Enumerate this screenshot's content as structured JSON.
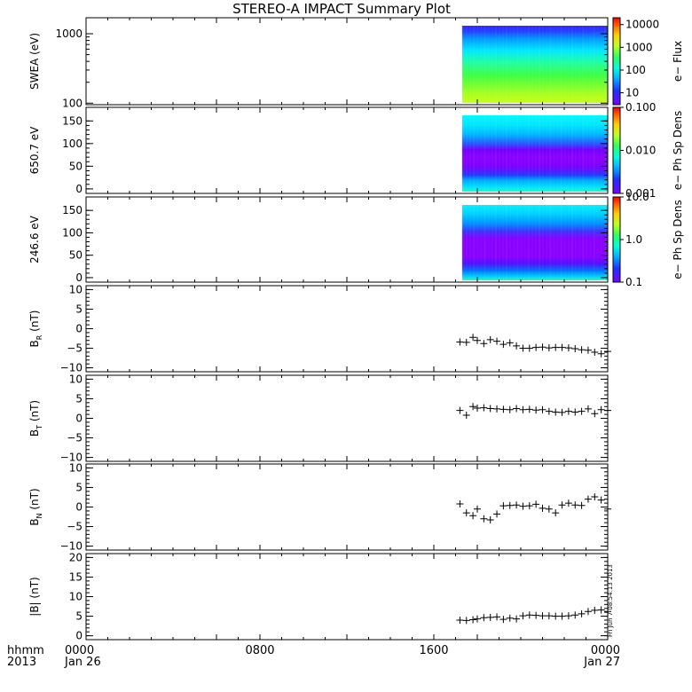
{
  "title": "STEREO-A IMPACT Summary Plot",
  "time_axis": {
    "row1_label": "hhmm",
    "row2_label": "2013",
    "ticks": [
      {
        "hour": 0,
        "time": "0000",
        "date": "Jan 26"
      },
      {
        "hour": 8,
        "time": "0800",
        "date": ""
      },
      {
        "hour": 16,
        "time": "1600",
        "date": ""
      },
      {
        "hour": 24,
        "time": "0000",
        "date": "Jan 27"
      }
    ]
  },
  "timestamp": "Fri Jun 7 08:54:13 2013",
  "colors": {
    "frame": "#000000",
    "background": "#ffffff"
  },
  "chart_data": [
    {
      "type": "heatmap",
      "id": "swea",
      "ylabel": "SWEA (eV)",
      "yscale": "log",
      "ylim": [
        95,
        1700
      ],
      "yticks": [
        {
          "v": 100,
          "label": "100"
        },
        {
          "v": 1000,
          "label": "1000"
        }
      ],
      "data_start_hour": 17.3,
      "data_end_hour": 24,
      "colorbar": {
        "label": "e− Flux",
        "scale": "log",
        "ticks": [
          {
            "v": 10,
            "label": "10"
          },
          {
            "v": 100,
            "label": "100"
          },
          {
            "v": 1000,
            "label": "1000"
          },
          {
            "v": 10000,
            "label": "10000"
          }
        ],
        "range": [
          3,
          20000
        ]
      }
    },
    {
      "type": "heatmap",
      "id": "pad650",
      "ylabel": "650.7 eV",
      "yscale": "linear",
      "ylim": [
        -10,
        180
      ],
      "yticks": [
        {
          "v": 0,
          "label": "0"
        },
        {
          "v": 50,
          "label": "50"
        },
        {
          "v": 100,
          "label": "100"
        },
        {
          "v": 150,
          "label": "150"
        }
      ],
      "data_start_hour": 17.3,
      "data_end_hour": 24,
      "colorbar": {
        "label": "e− Ph Sp Dens",
        "scale": "log",
        "ticks": [
          {
            "v": 0.001,
            "label": "0.001"
          },
          {
            "v": 0.01,
            "label": "0.010"
          },
          {
            "v": 0.1,
            "label": "0.100"
          }
        ],
        "range": [
          0.001,
          0.1
        ]
      }
    },
    {
      "type": "heatmap",
      "id": "pad246",
      "ylabel": "246.6 eV",
      "yscale": "linear",
      "ylim": [
        -10,
        180
      ],
      "yticks": [
        {
          "v": 0,
          "label": "0"
        },
        {
          "v": 50,
          "label": "50"
        },
        {
          "v": 100,
          "label": "100"
        },
        {
          "v": 150,
          "label": "150"
        }
      ],
      "data_start_hour": 17.3,
      "data_end_hour": 24,
      "colorbar": {
        "label": "e− Ph Sp Dens",
        "scale": "log",
        "ticks": [
          {
            "v": 0.1,
            "label": "0.1"
          },
          {
            "v": 1,
            "label": "1.0"
          },
          {
            "v": 10,
            "label": "10.0"
          }
        ],
        "range": [
          0.1,
          10
        ]
      }
    },
    {
      "type": "scatter",
      "id": "br",
      "ylabel": "B",
      "ylabel_sub": "R",
      "ylabel_unit": "(nT)",
      "ylim": [
        -11,
        11
      ],
      "yticks": [
        {
          "v": -10,
          "label": "−10"
        },
        {
          "v": -5,
          "label": "−5"
        },
        {
          "v": 0,
          "label": "0"
        },
        {
          "v": 5,
          "label": "5"
        },
        {
          "v": 10,
          "label": "10"
        }
      ],
      "x": [
        17.2,
        17.5,
        17.8,
        18.0,
        18.3,
        18.6,
        18.9,
        19.2,
        19.5,
        19.8,
        20.1,
        20.4,
        20.7,
        21.0,
        21.3,
        21.6,
        21.9,
        22.2,
        22.5,
        22.8,
        23.1,
        23.4,
        23.7,
        24.0
      ],
      "y": [
        -3.4,
        -3.5,
        -2.2,
        -3.0,
        -3.8,
        -2.8,
        -3.2,
        -4.0,
        -3.6,
        -4.4,
        -5.0,
        -5.0,
        -4.8,
        -4.7,
        -4.9,
        -4.8,
        -4.8,
        -4.9,
        -5.1,
        -5.4,
        -5.5,
        -6.0,
        -6.4,
        -5.8
      ]
    },
    {
      "type": "scatter",
      "id": "bt",
      "ylabel": "B",
      "ylabel_sub": "T",
      "ylabel_unit": "(nT)",
      "ylim": [
        -11,
        11
      ],
      "yticks": [
        {
          "v": -10,
          "label": "−10"
        },
        {
          "v": -5,
          "label": "−5"
        },
        {
          "v": 0,
          "label": "0"
        },
        {
          "v": 5,
          "label": "5"
        },
        {
          "v": 10,
          "label": "10"
        }
      ],
      "x": [
        17.2,
        17.5,
        17.8,
        18.0,
        18.3,
        18.6,
        18.9,
        19.2,
        19.5,
        19.8,
        20.1,
        20.4,
        20.7,
        21.0,
        21.3,
        21.6,
        21.9,
        22.2,
        22.5,
        22.8,
        23.1,
        23.4,
        23.7,
        24.0
      ],
      "y": [
        2.0,
        0.8,
        3.0,
        2.6,
        2.7,
        2.5,
        2.4,
        2.3,
        2.2,
        2.5,
        2.2,
        2.3,
        2.1,
        2.2,
        1.8,
        1.6,
        1.5,
        1.8,
        1.6,
        1.8,
        2.4,
        1.2,
        2.2,
        2.0
      ]
    },
    {
      "type": "scatter",
      "id": "bn",
      "ylabel": "B",
      "ylabel_sub": "N",
      "ylabel_unit": "(nT)",
      "ylim": [
        -11,
        11
      ],
      "yticks": [
        {
          "v": -10,
          "label": "−10"
        },
        {
          "v": -5,
          "label": "−5"
        },
        {
          "v": 0,
          "label": "0"
        },
        {
          "v": 5,
          "label": "5"
        },
        {
          "v": 10,
          "label": "10"
        }
      ],
      "x": [
        17.2,
        17.5,
        17.8,
        18.0,
        18.3,
        18.6,
        18.9,
        19.2,
        19.5,
        19.8,
        20.1,
        20.4,
        20.7,
        21.0,
        21.3,
        21.6,
        21.9,
        22.2,
        22.5,
        22.8,
        23.1,
        23.4,
        23.7,
        24.0
      ],
      "y": [
        0.8,
        -1.5,
        -2.2,
        -0.5,
        -3.0,
        -3.3,
        -1.8,
        0.3,
        0.4,
        0.5,
        0.2,
        0.3,
        0.7,
        -0.3,
        -0.5,
        -1.5,
        0.5,
        1.0,
        0.5,
        0.4,
        2.0,
        2.6,
        1.8,
        -0.5
      ]
    },
    {
      "type": "scatter",
      "id": "bmag",
      "ylabel": "|B| (nT)",
      "ylim": [
        -1,
        21
      ],
      "yticks": [
        {
          "v": 0,
          "label": "0"
        },
        {
          "v": 5,
          "label": "5"
        },
        {
          "v": 10,
          "label": "10"
        },
        {
          "v": 15,
          "label": "15"
        },
        {
          "v": 20,
          "label": "20"
        }
      ],
      "x": [
        17.2,
        17.5,
        17.8,
        18.0,
        18.3,
        18.6,
        18.9,
        19.2,
        19.5,
        19.8,
        20.1,
        20.4,
        20.7,
        21.0,
        21.3,
        21.6,
        21.9,
        22.2,
        22.5,
        22.8,
        23.1,
        23.4,
        23.7,
        24.0
      ],
      "y": [
        4.0,
        3.9,
        4.1,
        4.3,
        4.6,
        4.7,
        4.8,
        4.2,
        4.5,
        4.3,
        5.1,
        5.3,
        5.2,
        5.1,
        5.1,
        5.0,
        5.0,
        5.1,
        5.3,
        5.6,
        6.2,
        6.5,
        6.6,
        6.2
      ]
    }
  ]
}
